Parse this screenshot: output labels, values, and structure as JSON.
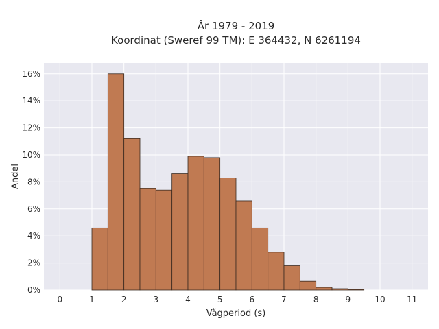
{
  "chart_data": {
    "type": "bar",
    "title_lines": [
      "År 1979 - 2019",
      "Koordinat (Sweref 99 TM): E 364432, N 6261194"
    ],
    "xlabel": "Vågperiod (s)",
    "ylabel": "Andel",
    "x_ticks": [
      "0",
      "1",
      "2",
      "3",
      "4",
      "5",
      "6",
      "7",
      "8",
      "9",
      "10",
      "11"
    ],
    "y_ticks": [
      "0%",
      "2%",
      "4%",
      "6%",
      "8%",
      "10%",
      "12%",
      "14%",
      "16%"
    ],
    "xlim": [
      -0.5,
      11.5
    ],
    "ylim": [
      0,
      0.16
    ],
    "bin_width": 0.5,
    "bin_starts": [
      1.0,
      1.5,
      2.0,
      2.5,
      3.0,
      3.5,
      4.0,
      4.5,
      5.0,
      5.5,
      6.0,
      6.5,
      7.0,
      7.5,
      8.0,
      8.5,
      9.0
    ],
    "values": [
      0.046,
      0.16,
      0.112,
      0.075,
      0.074,
      0.086,
      0.099,
      0.098,
      0.083,
      0.066,
      0.046,
      0.028,
      0.018,
      0.0065,
      0.002,
      0.001,
      0.0005
    ],
    "grid": true,
    "colors": {
      "bar_fill": "#c07a52",
      "bar_edge": "#3a2a20",
      "plot_bg": "#e8e8f0",
      "grid": "#ffffff"
    }
  }
}
